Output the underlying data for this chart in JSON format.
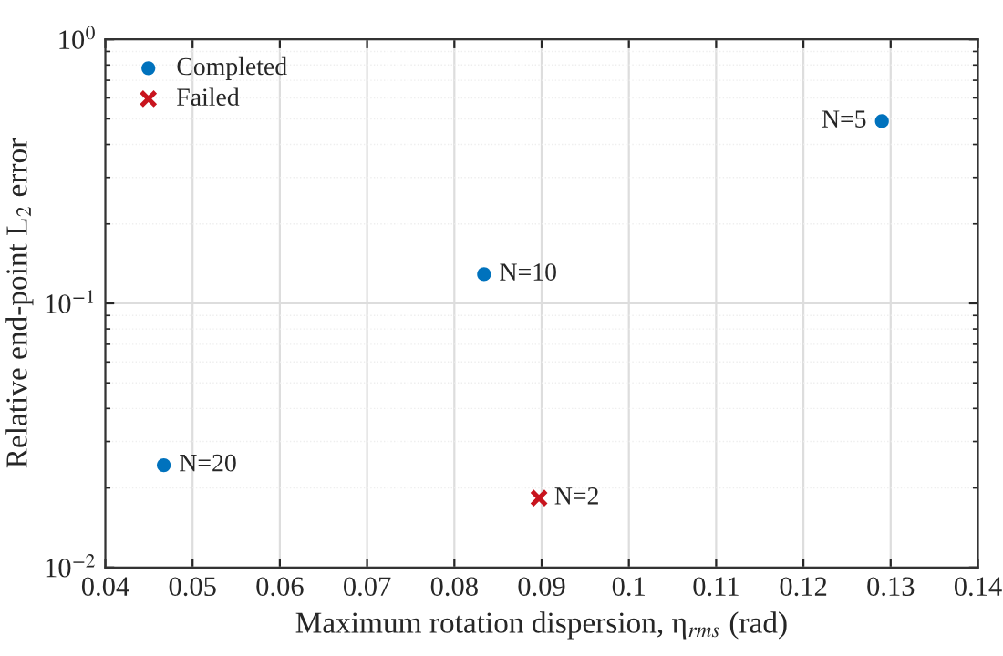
{
  "chart_data": {
    "type": "scatter",
    "xlabel": "Maximum rotation dispersion, η$_{rms}$ (rad)",
    "ylabel": "Relative end-point L$_{2}$ error",
    "series": [
      {
        "name": "Completed",
        "color": "#0072bd",
        "marker": "circle",
        "x": [
          0.129,
          0.0834,
          0.0467
        ],
        "values": [
          0.49,
          0.129,
          0.0244
        ]
      },
      {
        "name": "Failed",
        "color": "#c8141e",
        "marker": "cross",
        "x": [
          0.0897
        ],
        "values": [
          0.0183
        ]
      }
    ],
    "annotations": [
      {
        "text": "N=5",
        "x": 0.129,
        "y": 0.49
      },
      {
        "text": "N=10",
        "x": 0.0834,
        "y": 0.129
      },
      {
        "text": "N=20",
        "x": 0.0467,
        "y": 0.0244
      },
      {
        "text": "N=2",
        "x": 0.0897,
        "y": 0.0183
      }
    ],
    "log": "y",
    "xlim": [
      0.04,
      0.14
    ],
    "xticks": [
      0.04,
      0.05,
      0.06,
      0.07,
      0.08,
      0.09,
      0.1,
      0.11,
      0.12,
      0.13,
      0.14
    ],
    "ylim": [
      0.01,
      1
    ],
    "yticks": [
      {
        "value": 0.01,
        "label": "10$^{−2}$"
      },
      {
        "value": 0.1,
        "label": "10$^{−1}$"
      },
      {
        "value": 1,
        "label": "10$^{0}$"
      }
    ],
    "grid": true,
    "legend": "top left"
  }
}
